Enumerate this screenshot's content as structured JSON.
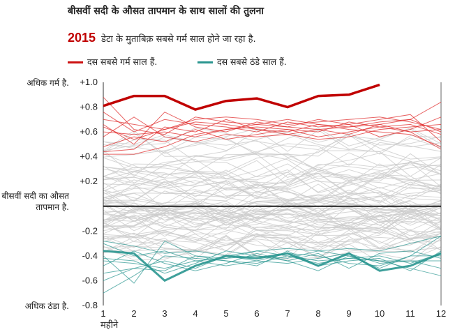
{
  "title": "बीसवीं सदी के औसत तापमान के साथ सालों की तुलना",
  "subtitle": {
    "year": "2015",
    "text": "डेटा के मुताबिक़ सबसे गर्म साल होने जा रहा है."
  },
  "legend": [
    {
      "label": "दस सबसे गर्म साल हैं.",
      "color": "#e03030"
    },
    {
      "label": "दस सबसे ठंडे साल हैं.",
      "color": "#2a9690"
    }
  ],
  "side_labels": {
    "warmer": "अधिक गर्म है.",
    "baseline_line1": "बीसवीं सदी का औसत",
    "baseline_line2": "तापमान है.",
    "colder": "अधिक ठंडा है."
  },
  "chart_data": {
    "type": "line",
    "xlabel": "महीने",
    "x": [
      1,
      2,
      3,
      4,
      5,
      6,
      7,
      8,
      9,
      10,
      11,
      12
    ],
    "xlim": [
      1,
      12
    ],
    "ylim": [
      -0.8,
      1.0
    ],
    "y_ticks": [
      "+1.0",
      "+0.8",
      "+0.6",
      "+0.4",
      "+0.2",
      "",
      "-0.2",
      "-0.4",
      "-0.6",
      "-0.8"
    ],
    "y_tick_values": [
      1.0,
      0.8,
      0.6,
      0.4,
      0.2,
      0,
      -0.2,
      -0.4,
      -0.6,
      -0.8
    ],
    "baseline": 0,
    "grid": false,
    "colors": {
      "highlight": "#c00000",
      "warm": "#e03030",
      "cool": "#2a9690",
      "other": "#cccccc",
      "axis": "#333333"
    },
    "series_2015": [
      0.81,
      0.89,
      0.89,
      0.78,
      0.85,
      0.87,
      0.8,
      0.89,
      0.9,
      0.98
    ],
    "warm_series": [
      [
        0.88,
        0.62,
        0.58,
        0.72,
        0.68,
        0.66,
        0.7,
        0.66,
        0.64,
        0.68,
        0.7,
        0.84
      ],
      [
        0.7,
        0.66,
        0.62,
        0.7,
        0.72,
        0.7,
        0.66,
        0.68,
        0.7,
        0.72,
        0.68,
        0.62
      ],
      [
        0.66,
        0.5,
        0.76,
        0.64,
        0.6,
        0.68,
        0.64,
        0.7,
        0.66,
        0.7,
        0.74,
        0.52
      ],
      [
        0.6,
        0.58,
        0.6,
        0.56,
        0.62,
        0.64,
        0.62,
        0.6,
        0.68,
        0.64,
        0.6,
        0.62
      ],
      [
        0.48,
        0.56,
        0.52,
        0.62,
        0.54,
        0.58,
        0.62,
        0.56,
        0.6,
        0.64,
        0.66,
        0.58
      ],
      [
        0.44,
        0.46,
        0.64,
        0.6,
        0.7,
        0.62,
        0.6,
        0.66,
        0.62,
        0.6,
        0.58,
        0.48
      ],
      [
        0.56,
        0.72,
        0.56,
        0.52,
        0.58,
        0.56,
        0.58,
        0.54,
        0.56,
        0.62,
        0.64,
        0.66
      ],
      [
        0.76,
        0.6,
        0.7,
        0.66,
        0.64,
        0.6,
        0.68,
        0.64,
        0.66,
        0.56,
        0.62,
        0.72
      ],
      [
        0.42,
        0.42,
        0.48,
        0.58,
        0.62,
        0.66,
        0.64,
        0.62,
        0.64,
        0.66,
        0.6,
        0.46
      ],
      [
        0.64,
        0.54,
        0.62,
        0.68,
        0.66,
        0.62,
        0.58,
        0.62,
        0.58,
        0.66,
        0.7,
        0.6
      ]
    ],
    "cool_series": [
      [
        -0.36,
        -0.38,
        -0.6,
        -0.48,
        -0.4,
        -0.42,
        -0.38,
        -0.48,
        -0.38,
        -0.52,
        -0.48,
        -0.38
      ],
      [
        -0.42,
        -0.44,
        -0.54,
        -0.46,
        -0.36,
        -0.4,
        -0.42,
        -0.36,
        -0.4,
        -0.44,
        -0.5,
        -0.56
      ],
      [
        -0.54,
        -0.5,
        -0.52,
        -0.4,
        -0.42,
        -0.36,
        -0.4,
        -0.44,
        -0.42,
        -0.4,
        -0.46,
        -0.38
      ],
      [
        -0.3,
        -0.4,
        -0.36,
        -0.44,
        -0.48,
        -0.44,
        -0.38,
        -0.4,
        -0.46,
        -0.48,
        -0.4,
        -0.24
      ],
      [
        -0.6,
        -0.5,
        -0.44,
        -0.5,
        -0.4,
        -0.44,
        -0.46,
        -0.42,
        -0.38,
        -0.46,
        -0.44,
        -0.44
      ],
      [
        -0.4,
        -0.62,
        -0.28,
        -0.4,
        -0.44,
        -0.48,
        -0.36,
        -0.48,
        -0.44,
        -0.42,
        -0.52,
        -0.36
      ],
      [
        -0.48,
        -0.36,
        -0.46,
        -0.52,
        -0.46,
        -0.38,
        -0.44,
        -0.38,
        -0.5,
        -0.38,
        -0.36,
        -0.42
      ],
      [
        -0.7,
        -0.56,
        -0.4,
        -0.42,
        -0.44,
        -0.46,
        -0.4,
        -0.46,
        -0.42,
        -0.44,
        -0.44,
        -0.5
      ],
      [
        -0.44,
        -0.46,
        -0.5,
        -0.44,
        -0.42,
        -0.4,
        -0.44,
        -0.52,
        -0.4,
        -0.5,
        -0.4,
        -0.4
      ],
      [
        -0.28,
        -0.32,
        -0.38,
        -0.36,
        -0.4,
        -0.36,
        -0.34,
        -0.36,
        -0.34,
        -0.36,
        -0.3,
        -0.24
      ]
    ]
  }
}
